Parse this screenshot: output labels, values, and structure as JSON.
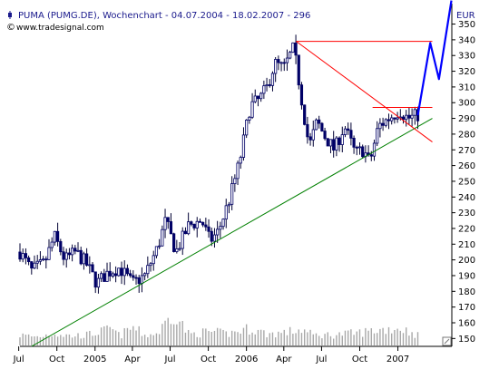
{
  "header": {
    "title": "PUMA (PUMG.DE), Wochenchart - 04.07.2004 - 18.02.2007 - 296",
    "source": "www.tradesignal.com",
    "currency": "EUR"
  },
  "chart_data": {
    "type": "candlestick",
    "timeframe": "weekly",
    "x_tick_labels": [
      "Jul",
      "Oct",
      "2005",
      "Apr",
      "Jul",
      "Oct",
      "2006",
      "Apr",
      "Jul",
      "Oct",
      "2007"
    ],
    "y_ticks": [
      150,
      160,
      170,
      180,
      190,
      200,
      210,
      220,
      230,
      240,
      250,
      260,
      270,
      280,
      290,
      300,
      310,
      320,
      330,
      340,
      350
    ],
    "ylim": [
      145,
      363
    ],
    "price_path": [
      [
        "2004-07-04",
        205
      ],
      [
        "2004-08-01",
        193
      ],
      [
        "2004-09-01",
        198
      ],
      [
        "2004-09-25",
        215
      ],
      [
        "2004-10-20",
        200
      ],
      [
        "2004-11-15",
        205
      ],
      [
        "2004-12-10",
        198
      ],
      [
        "2005-01-05",
        185
      ],
      [
        "2005-02-01",
        192
      ],
      [
        "2005-03-01",
        195
      ],
      [
        "2005-04-01",
        185
      ],
      [
        "2005-05-01",
        190
      ],
      [
        "2005-06-01",
        208
      ],
      [
        "2005-06-20",
        225
      ],
      [
        "2005-07-15",
        205
      ],
      [
        "2005-08-15",
        222
      ],
      [
        "2005-09-15",
        225
      ],
      [
        "2005-10-05",
        212
      ],
      [
        "2005-10-25",
        218
      ],
      [
        "2005-11-20",
        238
      ],
      [
        "2005-12-15",
        262
      ],
      [
        "2006-01-10",
        298
      ],
      [
        "2006-02-01",
        302
      ],
      [
        "2006-02-20",
        310
      ],
      [
        "2006-03-10",
        325
      ],
      [
        "2006-04-01",
        322
      ],
      [
        "2006-04-25",
        335
      ],
      [
        "2006-05-15",
        300
      ],
      [
        "2006-06-01",
        272
      ],
      [
        "2006-06-20",
        288
      ],
      [
        "2006-07-10",
        278
      ],
      [
        "2006-08-01",
        270
      ],
      [
        "2006-08-25",
        285
      ],
      [
        "2006-09-20",
        268
      ],
      [
        "2006-10-10",
        270
      ],
      [
        "2006-10-25",
        262
      ],
      [
        "2006-11-15",
        285
      ],
      [
        "2006-12-10",
        290
      ],
      [
        "2007-01-05",
        295
      ],
      [
        "2007-01-25",
        290
      ],
      [
        "2007-02-18",
        292
      ]
    ],
    "volume": [
      [
        "2004-07-04",
        2.6
      ],
      [
        "2004-08-15",
        2.2
      ],
      [
        "2004-09-25",
        3.1
      ],
      [
        "2004-11-01",
        2.4
      ],
      [
        "2004-12-10",
        2.6
      ],
      [
        "2005-01-20",
        3.6
      ],
      [
        "2005-02-10",
        4.2
      ],
      [
        "2005-03-01",
        2.4
      ],
      [
        "2005-04-01",
        4.6
      ],
      [
        "2005-05-01",
        2.6
      ],
      [
        "2005-06-01",
        3.0
      ],
      [
        "2005-07-10",
        8.4
      ],
      [
        "2005-08-15",
        2.8
      ],
      [
        "2005-10-05",
        3.5
      ],
      [
        "2005-11-15",
        2.9
      ],
      [
        "2006-01-10",
        4.3
      ],
      [
        "2006-02-20",
        2.9
      ],
      [
        "2006-04-01",
        3.2
      ],
      [
        "2006-05-15",
        4.0
      ],
      [
        "2006-06-10",
        2.6
      ],
      [
        "2006-08-01",
        2.7
      ],
      [
        "2006-09-20",
        3.1
      ],
      [
        "2006-11-15",
        3.9
      ],
      [
        "2007-01-05",
        4.4
      ],
      [
        "2007-02-18",
        2.6
      ]
    ],
    "lines": [
      {
        "label": "rising-trendline",
        "color": "#008000",
        "points": [
          [
            "2004-08-01",
            145
          ],
          [
            "2007-03-25",
            290
          ]
        ]
      },
      {
        "label": "falling-trendline",
        "color": "#ff0000",
        "points": [
          [
            "2006-05-01",
            339
          ],
          [
            "2007-03-25",
            275
          ]
        ]
      },
      {
        "label": "resistance-340",
        "color": "#ff0000",
        "points": [
          [
            "2006-05-01",
            339
          ],
          [
            "2007-03-25",
            339
          ]
        ]
      },
      {
        "label": "resistance-297",
        "color": "#ff0000",
        "points": [
          [
            "2006-11-01",
            297
          ],
          [
            "2007-03-25",
            297
          ]
        ]
      }
    ],
    "projection": {
      "color": "#0000ff",
      "points": [
        [
          "2007-02-18",
          292
        ],
        [
          "2007-03-20",
          338
        ],
        [
          "2007-04-10",
          315
        ],
        [
          "2007-05-10",
          365
        ]
      ]
    }
  }
}
